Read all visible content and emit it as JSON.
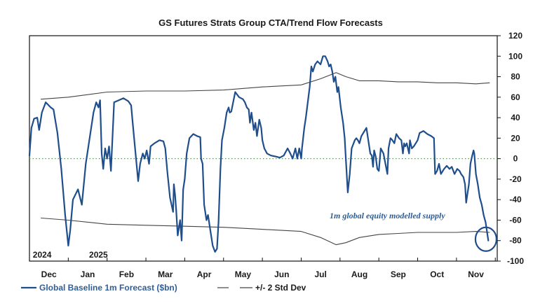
{
  "chart_data": {
    "type": "line",
    "title": "GS Futures Strats Group CTA/Trend Flow Forecasts",
    "xlabel": "",
    "ylabel": "",
    "ylim": [
      -100,
      120
    ],
    "yticks": [
      -100,
      -80,
      -60,
      -40,
      -20,
      0,
      20,
      40,
      60,
      80,
      100,
      120
    ],
    "x_range": [
      0,
      12.05
    ],
    "x_months": [
      {
        "label": "Dec",
        "center": 0.5
      },
      {
        "label": "Jan",
        "center": 1.5
      },
      {
        "label": "Feb",
        "center": 2.5
      },
      {
        "label": "Mar",
        "center": 3.5
      },
      {
        "label": "Apr",
        "center": 4.5
      },
      {
        "label": "May",
        "center": 5.5
      },
      {
        "label": "Jun",
        "center": 6.5
      },
      {
        "label": "Jul",
        "center": 7.5
      },
      {
        "label": "Aug",
        "center": 8.5
      },
      {
        "label": "Sep",
        "center": 9.5
      },
      {
        "label": "Oct",
        "center": 10.5
      },
      {
        "label": "Nov",
        "center": 11.5
      }
    ],
    "x_years": [
      {
        "label": "2024",
        "x": 0.05
      },
      {
        "label": "2025",
        "x": 1.5
      }
    ],
    "zero_line": true,
    "grid": false,
    "legend_position": "bottom-left",
    "annotation": {
      "text": "1m global equity modelled supply",
      "x": 8.1,
      "y": -63
    },
    "highlight_circle": {
      "x": 11.85,
      "y": -80
    },
    "series": [
      {
        "name": "Global Baseline 1m Forecast ($bn)",
        "color": "#1f4e8c",
        "style": "solid",
        "points": [
          [
            0,
            3
          ],
          [
            0.05,
            30
          ],
          [
            0.12,
            39
          ],
          [
            0.2,
            40
          ],
          [
            0.25,
            28
          ],
          [
            0.32,
            45
          ],
          [
            0.42,
            55
          ],
          [
            0.55,
            50
          ],
          [
            0.62,
            48
          ],
          [
            0.72,
            25
          ],
          [
            0.82,
            -10
          ],
          [
            0.92,
            -55
          ],
          [
            1.0,
            -85
          ],
          [
            1.05,
            -70
          ],
          [
            1.12,
            -40
          ],
          [
            1.25,
            -30
          ],
          [
            1.35,
            -45
          ],
          [
            1.45,
            -5
          ],
          [
            1.55,
            20
          ],
          [
            1.65,
            45
          ],
          [
            1.72,
            55
          ],
          [
            1.78,
            50
          ],
          [
            1.82,
            57
          ],
          [
            1.86,
            5
          ],
          [
            1.9,
            -10
          ],
          [
            1.95,
            10
          ],
          [
            2.0,
            0
          ],
          [
            2.05,
            12
          ],
          [
            2.1,
            -12
          ],
          [
            2.18,
            55
          ],
          [
            2.3,
            57
          ],
          [
            2.42,
            59
          ],
          [
            2.55,
            56
          ],
          [
            2.62,
            52
          ],
          [
            2.66,
            35
          ],
          [
            2.72,
            10
          ],
          [
            2.8,
            -22
          ],
          [
            2.85,
            -5
          ],
          [
            2.92,
            5
          ],
          [
            2.97,
            0
          ],
          [
            3.02,
            8
          ],
          [
            3.08,
            -5
          ],
          [
            3.12,
            12
          ],
          [
            3.22,
            15
          ],
          [
            3.35,
            18
          ],
          [
            3.45,
            17
          ],
          [
            3.5,
            10
          ],
          [
            3.55,
            -12
          ],
          [
            3.62,
            -38
          ],
          [
            3.7,
            -52
          ],
          [
            3.72,
            -25
          ],
          [
            3.75,
            -35
          ],
          [
            3.78,
            -50
          ],
          [
            3.82,
            -75
          ],
          [
            3.88,
            -60
          ],
          [
            3.92,
            -80
          ],
          [
            3.96,
            -30
          ],
          [
            4.0,
            -20
          ],
          [
            4.05,
            5
          ],
          [
            4.12,
            20
          ],
          [
            4.22,
            24
          ],
          [
            4.32,
            22
          ],
          [
            4.4,
            21
          ],
          [
            4.42,
            0
          ],
          [
            4.46,
            -5
          ],
          [
            4.5,
            -45
          ],
          [
            4.56,
            -60
          ],
          [
            4.6,
            -55
          ],
          [
            4.66,
            -70
          ],
          [
            4.72,
            -85
          ],
          [
            4.78,
            -91
          ],
          [
            4.83,
            -88
          ],
          [
            4.87,
            -62
          ],
          [
            4.92,
            -10
          ],
          [
            4.96,
            18
          ],
          [
            5.02,
            30
          ],
          [
            5.08,
            45
          ],
          [
            5.13,
            50
          ],
          [
            5.16,
            45
          ],
          [
            5.2,
            46
          ],
          [
            5.3,
            65
          ],
          [
            5.4,
            60
          ],
          [
            5.5,
            58
          ],
          [
            5.55,
            55
          ],
          [
            5.6,
            50
          ],
          [
            5.65,
            48
          ],
          [
            5.68,
            35
          ],
          [
            5.72,
            45
          ],
          [
            5.78,
            28
          ],
          [
            5.82,
            35
          ],
          [
            5.86,
            22
          ],
          [
            5.92,
            38
          ],
          [
            5.97,
            30
          ],
          [
            6.0,
            18
          ],
          [
            6.05,
            10
          ],
          [
            6.12,
            5
          ],
          [
            6.22,
            3
          ],
          [
            6.35,
            2
          ],
          [
            6.45,
            1
          ],
          [
            6.55,
            3
          ],
          [
            6.65,
            10
          ],
          [
            6.72,
            5
          ],
          [
            6.78,
            0
          ],
          [
            6.85,
            10
          ],
          [
            6.9,
            0
          ],
          [
            6.95,
            10
          ],
          [
            7.0,
            0
          ],
          [
            7.02,
            10
          ],
          [
            7.08,
            30
          ],
          [
            7.12,
            40
          ],
          [
            7.18,
            58
          ],
          [
            7.22,
            70
          ],
          [
            7.26,
            90
          ],
          [
            7.3,
            85
          ],
          [
            7.36,
            92
          ],
          [
            7.42,
            95
          ],
          [
            7.5,
            92
          ],
          [
            7.56,
            100
          ],
          [
            7.62,
            100
          ],
          [
            7.68,
            95
          ],
          [
            7.72,
            90
          ],
          [
            7.76,
            92
          ],
          [
            7.8,
            85
          ],
          [
            7.84,
            75
          ],
          [
            7.88,
            80
          ],
          [
            7.93,
            65
          ],
          [
            7.96,
            70
          ],
          [
            8.02,
            50
          ],
          [
            8.08,
            35
          ],
          [
            8.12,
            20
          ],
          [
            8.15,
            0
          ],
          [
            8.2,
            -33
          ],
          [
            8.25,
            -15
          ],
          [
            8.3,
            10
          ],
          [
            8.38,
            18
          ],
          [
            8.42,
            20
          ],
          [
            8.46,
            18
          ],
          [
            8.5,
            15
          ],
          [
            8.55,
            22
          ],
          [
            8.6,
            25
          ],
          [
            8.68,
            30
          ],
          [
            8.72,
            20
          ],
          [
            8.78,
            5
          ],
          [
            8.82,
            3
          ],
          [
            8.85,
            -8
          ],
          [
            8.88,
            8
          ],
          [
            8.92,
            2
          ],
          [
            8.96,
            -10
          ],
          [
            9.0,
            -12
          ],
          [
            9.05,
            10
          ],
          [
            9.12,
            5
          ],
          [
            9.17,
            -5
          ],
          [
            9.22,
            -15
          ],
          [
            9.25,
            10
          ],
          [
            9.3,
            20
          ],
          [
            9.35,
            18
          ],
          [
            9.4,
            15
          ],
          [
            9.45,
            24
          ],
          [
            9.52,
            20
          ],
          [
            9.58,
            18
          ],
          [
            9.62,
            5
          ],
          [
            9.65,
            15
          ],
          [
            9.68,
            12
          ],
          [
            9.72,
            15
          ],
          [
            9.78,
            5
          ],
          [
            9.8,
            18
          ],
          [
            9.85,
            10
          ],
          [
            9.9,
            12
          ],
          [
            9.95,
            15
          ],
          [
            10.0,
            18
          ],
          [
            10.05,
            25
          ],
          [
            10.15,
            27
          ],
          [
            10.25,
            24
          ],
          [
            10.35,
            22
          ],
          [
            10.42,
            20
          ],
          [
            10.45,
            -15
          ],
          [
            10.5,
            -12
          ],
          [
            10.55,
            -5
          ],
          [
            10.6,
            -15
          ],
          [
            10.68,
            -10
          ],
          [
            10.75,
            -7
          ],
          [
            10.82,
            -10
          ],
          [
            10.88,
            -8
          ],
          [
            10.95,
            -15
          ],
          [
            11.02,
            -10
          ],
          [
            11.08,
            -12
          ],
          [
            11.12,
            -15
          ],
          [
            11.18,
            -18
          ],
          [
            11.22,
            -25
          ],
          [
            11.25,
            -43
          ],
          [
            11.28,
            -35
          ],
          [
            11.32,
            -25
          ],
          [
            11.36,
            -5
          ],
          [
            11.4,
            2
          ],
          [
            11.44,
            8
          ],
          [
            11.46,
            5
          ],
          [
            11.5,
            -15
          ],
          [
            11.55,
            -25
          ],
          [
            11.6,
            -38
          ],
          [
            11.65,
            -45
          ],
          [
            11.7,
            -55
          ],
          [
            11.75,
            -62
          ],
          [
            11.82,
            -80
          ]
        ]
      },
      {
        "name": "+/- 2 Std Dev",
        "color": "#444444",
        "style": "solid",
        "points": [
          [
            0.3,
            58
          ],
          [
            1.0,
            60
          ],
          [
            2.0,
            65
          ],
          [
            3.0,
            66
          ],
          [
            4.0,
            66
          ],
          [
            5.0,
            67
          ],
          [
            6.0,
            70
          ],
          [
            7.0,
            72
          ],
          [
            7.5,
            78
          ],
          [
            7.9,
            84
          ],
          [
            8.15,
            80
          ],
          [
            8.5,
            76
          ],
          [
            9.0,
            76
          ],
          [
            9.5,
            75
          ],
          [
            10.0,
            75
          ],
          [
            10.5,
            74
          ],
          [
            11.0,
            74
          ],
          [
            11.5,
            73
          ],
          [
            11.85,
            74
          ]
        ]
      },
      {
        "name": "",
        "color": "#444444",
        "style": "solid",
        "points": [
          [
            0.3,
            -58
          ],
          [
            1.0,
            -60
          ],
          [
            2.0,
            -64
          ],
          [
            3.0,
            -65
          ],
          [
            4.0,
            -66
          ],
          [
            5.0,
            -67
          ],
          [
            6.0,
            -69
          ],
          [
            7.0,
            -71
          ],
          [
            7.5,
            -77
          ],
          [
            7.9,
            -84
          ],
          [
            8.15,
            -82
          ],
          [
            8.5,
            -77
          ],
          [
            9.0,
            -74
          ],
          [
            9.5,
            -73
          ],
          [
            10.0,
            -72
          ],
          [
            10.5,
            -72
          ],
          [
            11.0,
            -72
          ],
          [
            11.5,
            -71
          ],
          [
            11.85,
            -72
          ]
        ]
      }
    ],
    "legend": [
      {
        "label": "Global Baseline 1m Forecast ($bn)",
        "color": "#1f4e8c"
      },
      {
        "label": "+/- 2 Std Dev",
        "color": "#444444"
      }
    ]
  }
}
